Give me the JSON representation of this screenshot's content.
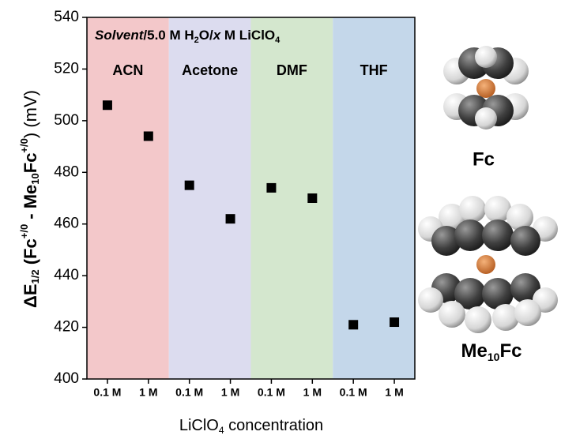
{
  "chart_data": {
    "type": "scatter",
    "title": [
      "Solvent",
      "/5.0 M H",
      "2",
      "O/",
      "x",
      " M LiClO",
      "4"
    ],
    "y_label": [
      "ΔE",
      "1/2",
      " (Fc",
      "+/0",
      " - Me",
      "10",
      "Fc",
      "+/0",
      ") (mV)"
    ],
    "x_label": [
      "LiClO",
      "4",
      " concentration"
    ],
    "categories": [
      "0.1 M",
      "1 M",
      "0.1 M",
      "1 M",
      "0.1 M",
      "1 M",
      "0.1 M",
      "1 M"
    ],
    "category_label_colors": [
      "#999999",
      "#000000",
      "#999999",
      "#000000",
      "#999999",
      "#000000",
      "#999999",
      "#000000"
    ],
    "values": [
      506,
      494,
      475,
      462,
      474,
      470,
      421,
      422
    ],
    "color": "#000000",
    "groups": [
      {
        "name": "ACN",
        "color": "#e87474",
        "band_color": "#f3c8ca"
      },
      {
        "name": "Acetone",
        "color": "#9c9cd2",
        "band_color": "#dcdcef"
      },
      {
        "name": "DMF",
        "color": "#7cc576",
        "band_color": "#d4e7ce"
      },
      {
        "name": "THF",
        "color": "#4f90d0",
        "band_color": "#c4d7ea"
      }
    ],
    "ylim": [
      400,
      540
    ],
    "yticks": [
      400,
      420,
      440,
      460,
      480,
      500,
      520,
      540
    ],
    "annotations": {
      "fc": "Fc",
      "me10fc": [
        "Me",
        "10",
        "Fc"
      ]
    }
  }
}
